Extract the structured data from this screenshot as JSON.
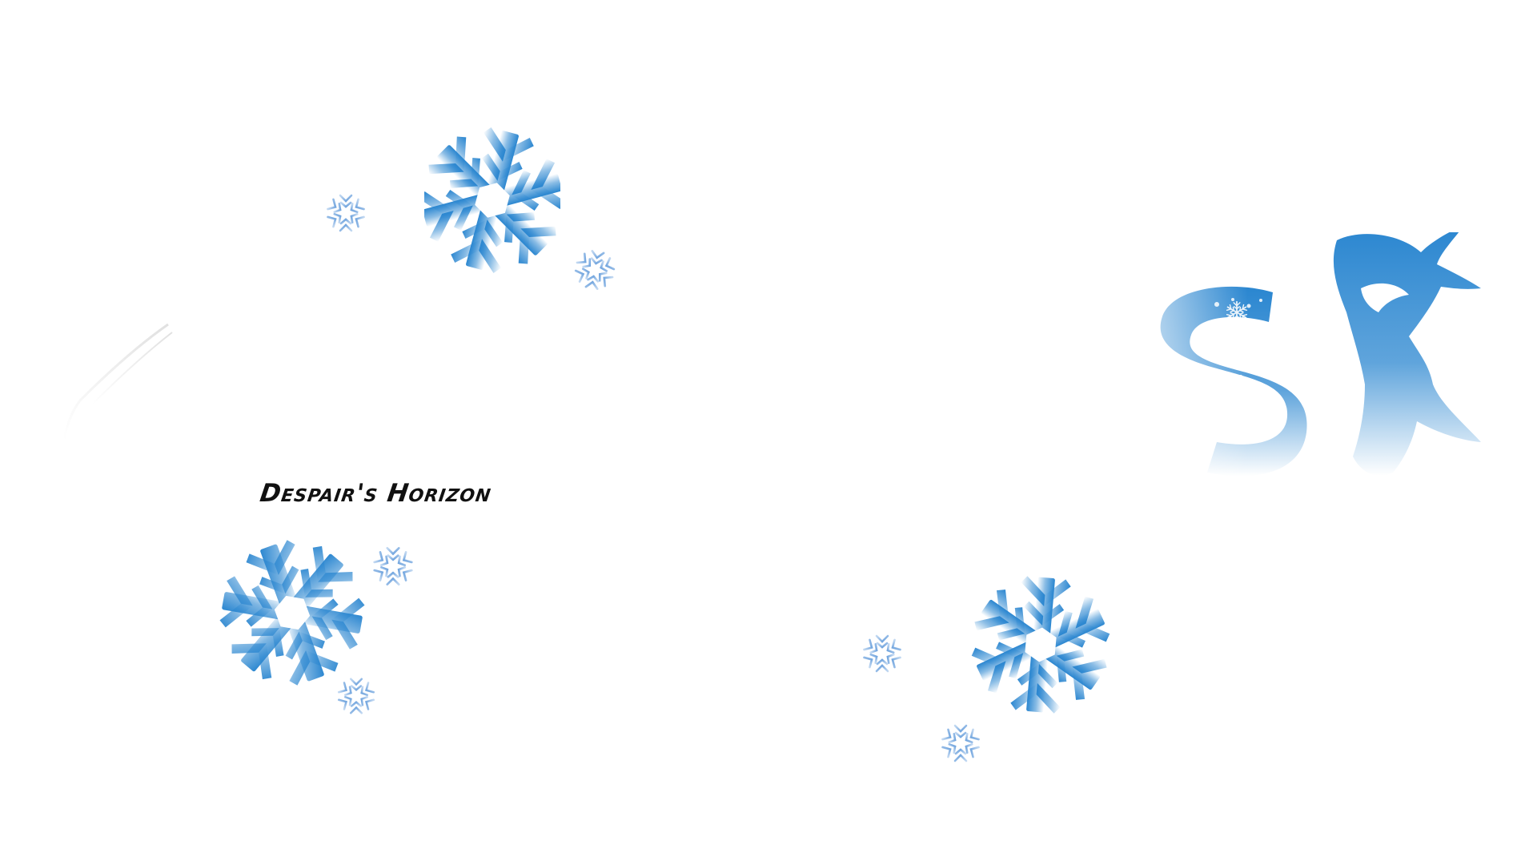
{
  "game": {
    "title": "Despair's Horizon"
  },
  "colors": {
    "background": "#ffffff",
    "accent_blue": "#2a86d0",
    "title_text": "#111111"
  },
  "icons": {
    "large_snowflake": "snowflake-icon",
    "small_snowflake": "snowflake-icon",
    "logo": "winter-s-logo"
  }
}
